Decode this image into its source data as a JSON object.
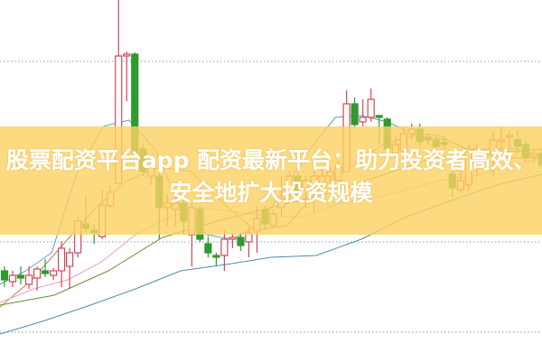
{
  "title": "股票配资平台app 配资最新平台：助力投资者高效、安全地扩大投资规模",
  "chart_data": {
    "type": "candlestick",
    "title": "",
    "xlabel": "",
    "ylabel": "",
    "ylim": [
      0,
      400
    ],
    "grid": "horizontal-dotted",
    "colors": {
      "up": "#d0485a",
      "down": "#2f9a2f",
      "banner": "#fbd264",
      "grid": "#999999"
    },
    "candles": [
      {
        "o": 100,
        "c": 90,
        "h": 105,
        "l": 82
      },
      {
        "o": 88,
        "c": 95,
        "h": 100,
        "l": 82
      },
      {
        "o": 95,
        "c": 92,
        "h": 105,
        "l": 85
      },
      {
        "o": 85,
        "c": 95,
        "h": 105,
        "l": 80
      },
      {
        "o": 92,
        "c": 102,
        "h": 105,
        "l": 78
      },
      {
        "o": 100,
        "c": 97,
        "h": 113,
        "l": 93
      },
      {
        "o": 95,
        "c": 100,
        "h": 103,
        "l": 90
      },
      {
        "o": 100,
        "c": 125,
        "h": 133,
        "l": 82
      },
      {
        "o": 105,
        "c": 120,
        "h": 125,
        "l": 80
      },
      {
        "o": 120,
        "c": 155,
        "h": 160,
        "l": 115
      },
      {
        "o": 152,
        "c": 147,
        "h": 182,
        "l": 142
      },
      {
        "o": 145,
        "c": 142,
        "h": 152,
        "l": 130
      },
      {
        "o": 138,
        "c": 173,
        "h": 190,
        "l": 135
      },
      {
        "o": 172,
        "c": 187,
        "h": 195,
        "l": 170
      },
      {
        "o": 197,
        "c": 338,
        "h": 400,
        "l": 197
      },
      {
        "o": 338,
        "c": 340,
        "h": 343,
        "l": 288
      },
      {
        "o": 340,
        "c": 230,
        "h": 342,
        "l": 225
      },
      {
        "o": 235,
        "c": 210,
        "h": 240,
        "l": 205
      },
      {
        "o": 205,
        "c": 215,
        "h": 225,
        "l": 195
      },
      {
        "o": 205,
        "c": 170,
        "h": 215,
        "l": 135
      },
      {
        "o": 170,
        "c": 175,
        "h": 185,
        "l": 150
      },
      {
        "o": 168,
        "c": 175,
        "h": 185,
        "l": 150
      },
      {
        "o": 175,
        "c": 155,
        "h": 180,
        "l": 140
      },
      {
        "o": 140,
        "c": 170,
        "h": 175,
        "l": 105
      },
      {
        "o": 168,
        "c": 135,
        "h": 172,
        "l": 132
      },
      {
        "o": 130,
        "c": 120,
        "h": 138,
        "l": 115
      },
      {
        "o": 117,
        "c": 115,
        "h": 120,
        "l": 105
      },
      {
        "o": 117,
        "c": 135,
        "h": 145,
        "l": 100
      },
      {
        "o": 135,
        "c": 137,
        "h": 142,
        "l": 125
      },
      {
        "o": 137,
        "c": 128,
        "h": 142,
        "l": 122
      },
      {
        "o": 132,
        "c": 142,
        "h": 150,
        "l": 115
      },
      {
        "o": 144,
        "c": 158,
        "h": 172,
        "l": 120
      },
      {
        "o": 168,
        "c": 152,
        "h": 172,
        "l": 145
      },
      {
        "o": 150,
        "c": 163,
        "h": 168,
        "l": 148
      },
      {
        "o": 170,
        "c": 180,
        "h": 205,
        "l": 160
      },
      {
        "o": 185,
        "c": 205,
        "h": 210,
        "l": 175
      },
      {
        "o": 205,
        "c": 185,
        "h": 210,
        "l": 175
      },
      {
        "o": 190,
        "c": 200,
        "h": 205,
        "l": 170
      },
      {
        "o": 195,
        "c": 205,
        "h": 215,
        "l": 165
      },
      {
        "o": 195,
        "c": 205,
        "h": 215,
        "l": 185
      },
      {
        "o": 205,
        "c": 210,
        "h": 215,
        "l": 200
      },
      {
        "o": 200,
        "c": 215,
        "h": 222,
        "l": 185
      },
      {
        "o": 210,
        "c": 285,
        "h": 300,
        "l": 210
      },
      {
        "o": 285,
        "c": 262,
        "h": 292,
        "l": 258
      },
      {
        "o": 265,
        "c": 270,
        "h": 290,
        "l": 260
      },
      {
        "o": 270,
        "c": 290,
        "h": 302,
        "l": 265
      },
      {
        "o": 272,
        "c": 270,
        "h": 270,
        "l": 240
      },
      {
        "o": 268,
        "c": 235,
        "h": 270,
        "l": 230
      },
      {
        "o": 230,
        "c": 240,
        "h": 250,
        "l": 225
      },
      {
        "o": 232,
        "c": 252,
        "h": 260,
        "l": 228
      },
      {
        "o": 252,
        "c": 257,
        "h": 263,
        "l": 245
      },
      {
        "o": 257,
        "c": 243,
        "h": 263,
        "l": 238
      },
      {
        "o": 248,
        "c": 245,
        "h": 252,
        "l": 240
      },
      {
        "o": 245,
        "c": 238,
        "h": 250,
        "l": 232
      },
      {
        "o": 242,
        "c": 240,
        "h": 250,
        "l": 235
      },
      {
        "o": 207,
        "c": 192,
        "h": 215,
        "l": 182
      },
      {
        "o": 190,
        "c": 200,
        "h": 210,
        "l": 187
      },
      {
        "o": 195,
        "c": 235,
        "h": 240,
        "l": 188
      },
      {
        "o": 225,
        "c": 235,
        "h": 240,
        "l": 205
      },
      {
        "o": 230,
        "c": 232,
        "h": 235,
        "l": 220
      },
      {
        "o": 230,
        "c": 245,
        "h": 255,
        "l": 205
      },
      {
        "o": 245,
        "c": 245,
        "h": 260,
        "l": 230
      },
      {
        "o": 248,
        "c": 250,
        "h": 255,
        "l": 235
      },
      {
        "o": 245,
        "c": 238,
        "h": 255,
        "l": 230
      },
      {
        "o": 240,
        "c": 225,
        "h": 245,
        "l": 220
      },
      {
        "o": 227,
        "c": 230,
        "h": 235,
        "l": 220
      },
      {
        "o": 230,
        "c": 217,
        "h": 235,
        "l": 213
      }
    ],
    "moving_averages": [
      {
        "color": "#5b9ec9",
        "values": [
          85,
          100,
          120,
          210,
          260,
          267,
          235,
          170,
          140,
          135,
          150,
          190,
          235,
          270,
          272,
          265,
          252,
          250,
          235,
          235,
          235,
          225
        ]
      },
      {
        "color": "#c0814a",
        "values": [
          60,
          90,
          130,
          170,
          200,
          215,
          210,
          175,
          145,
          150,
          190,
          215,
          240,
          250,
          245,
          230,
          225,
          225
        ]
      },
      {
        "color": "#e8a0c8",
        "values": [
          65,
          80,
          90,
          110,
          140,
          160,
          170,
          165,
          160,
          160,
          175,
          180,
          190,
          200,
          205,
          215,
          225
        ]
      },
      {
        "color": "#6b8e3a",
        "values": [
          62,
          73,
          100,
          137,
          155,
          170,
          185,
          205,
          225,
          230,
          235
        ]
      },
      {
        "color": "#4a8fa8",
        "values": [
          30,
          45,
          62,
          80,
          100,
          107,
          115,
          117,
          135,
          160,
          178,
          195,
          207
        ]
      }
    ]
  }
}
